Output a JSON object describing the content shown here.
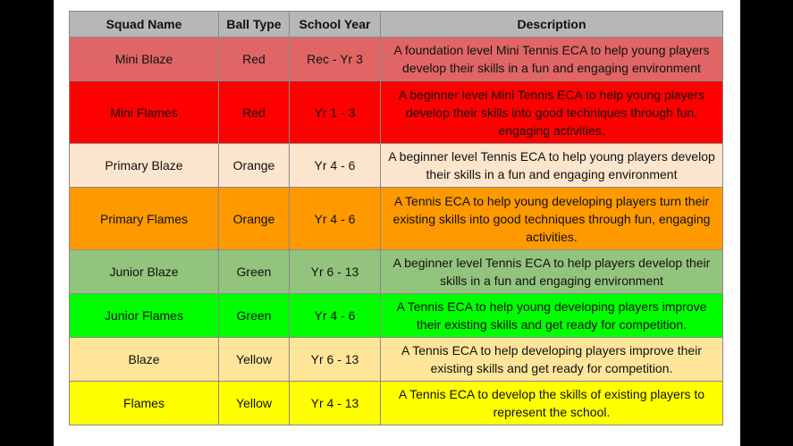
{
  "table": {
    "headers": [
      "Squad Name",
      "Ball Type",
      "School Year",
      "Description"
    ],
    "header_bg": "#b7b7b7",
    "rows": [
      {
        "squad": "Mini Blaze",
        "ball": "Red",
        "year": "Rec - Yr 3",
        "description": "A foundation level Mini Tennis ECA to help young players develop their skills in a fun and engaging environment",
        "bg": "#e06666",
        "tall": false
      },
      {
        "squad": "Mini Flames",
        "ball": "Red",
        "year": "Yr 1 - 3",
        "description": "A beginner level Mini Tennis ECA to help young players develop their skills into good techniques through fun, engaging activities.",
        "bg": "#ff0000",
        "tall": true
      },
      {
        "squad": "Primary Blaze",
        "ball": "Orange",
        "year": "Yr 4 - 6",
        "description": "A beginner level Tennis ECA to help young players develop their skills in a fun and engaging environment",
        "bg": "#fce5cd",
        "tall": false
      },
      {
        "squad": "Primary Flames",
        "ball": "Orange",
        "year": "Yr 4 - 6",
        "description": "A Tennis ECA to help young developing players turn their existing skills into good techniques through fun, engaging activities.",
        "bg": "#ff9900",
        "tall": true
      },
      {
        "squad": "Junior Blaze",
        "ball": "Green",
        "year": "Yr 6 - 13",
        "description": "A beginner level Tennis ECA to help players develop their skills in a fun and engaging environment",
        "bg": "#93c47d",
        "tall": false
      },
      {
        "squad": "Junior Flames",
        "ball": "Green",
        "year": "Yr 4 - 6",
        "description": "A Tennis ECA to help young developing players improve their existing skills and get ready for competition.",
        "bg": "#00ff00",
        "tall": false
      },
      {
        "squad": "Blaze",
        "ball": "Yellow",
        "year": "Yr 6 - 13",
        "description": "A Tennis ECA to help developing players improve their existing skills and get ready for competition.",
        "bg": "#ffe599",
        "tall": false
      },
      {
        "squad": "Flames",
        "ball": "Yellow",
        "year": "Yr 4 - 13",
        "description": "A Tennis ECA to develop the skills of existing players to represent the school.",
        "bg": "#ffff00",
        "tall": false
      }
    ]
  }
}
